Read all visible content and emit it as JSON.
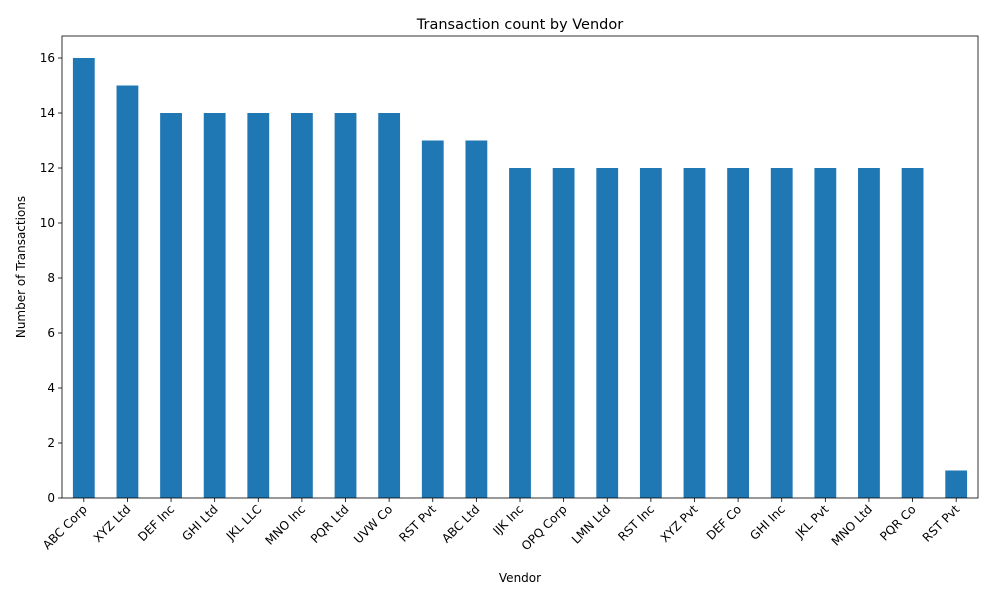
{
  "chart_data": {
    "type": "bar",
    "title": "Transaction count by Vendor",
    "xlabel": "Vendor",
    "ylabel": "Number of Transactions",
    "categories": [
      "ABC Corp",
      "XYZ Ltd",
      "DEF Inc",
      "GHI Ltd",
      "JKL LLC",
      "MNO Inc",
      "PQR Ltd",
      "UVW Co",
      "RST Pvt",
      "ABC Ltd",
      "IJK Inc",
      "OPQ Corp",
      "LMN Ltd",
      "RST Inc",
      "XYZ Pvt",
      "DEF Co",
      "GHI Inc",
      "JKL Pvt",
      "MNO Ltd",
      "PQR Co",
      "RST Pvt"
    ],
    "values": [
      16,
      15,
      14,
      14,
      14,
      14,
      14,
      14,
      13,
      13,
      12,
      12,
      12,
      12,
      12,
      12,
      12,
      12,
      12,
      12,
      1
    ],
    "yticks": [
      "0",
      "2",
      "4",
      "6",
      "8",
      "10",
      "12",
      "14",
      "16"
    ],
    "ylim": [
      0,
      16.8
    ],
    "bar_color": "#1f77b4",
    "grid": false,
    "legend": "none"
  }
}
